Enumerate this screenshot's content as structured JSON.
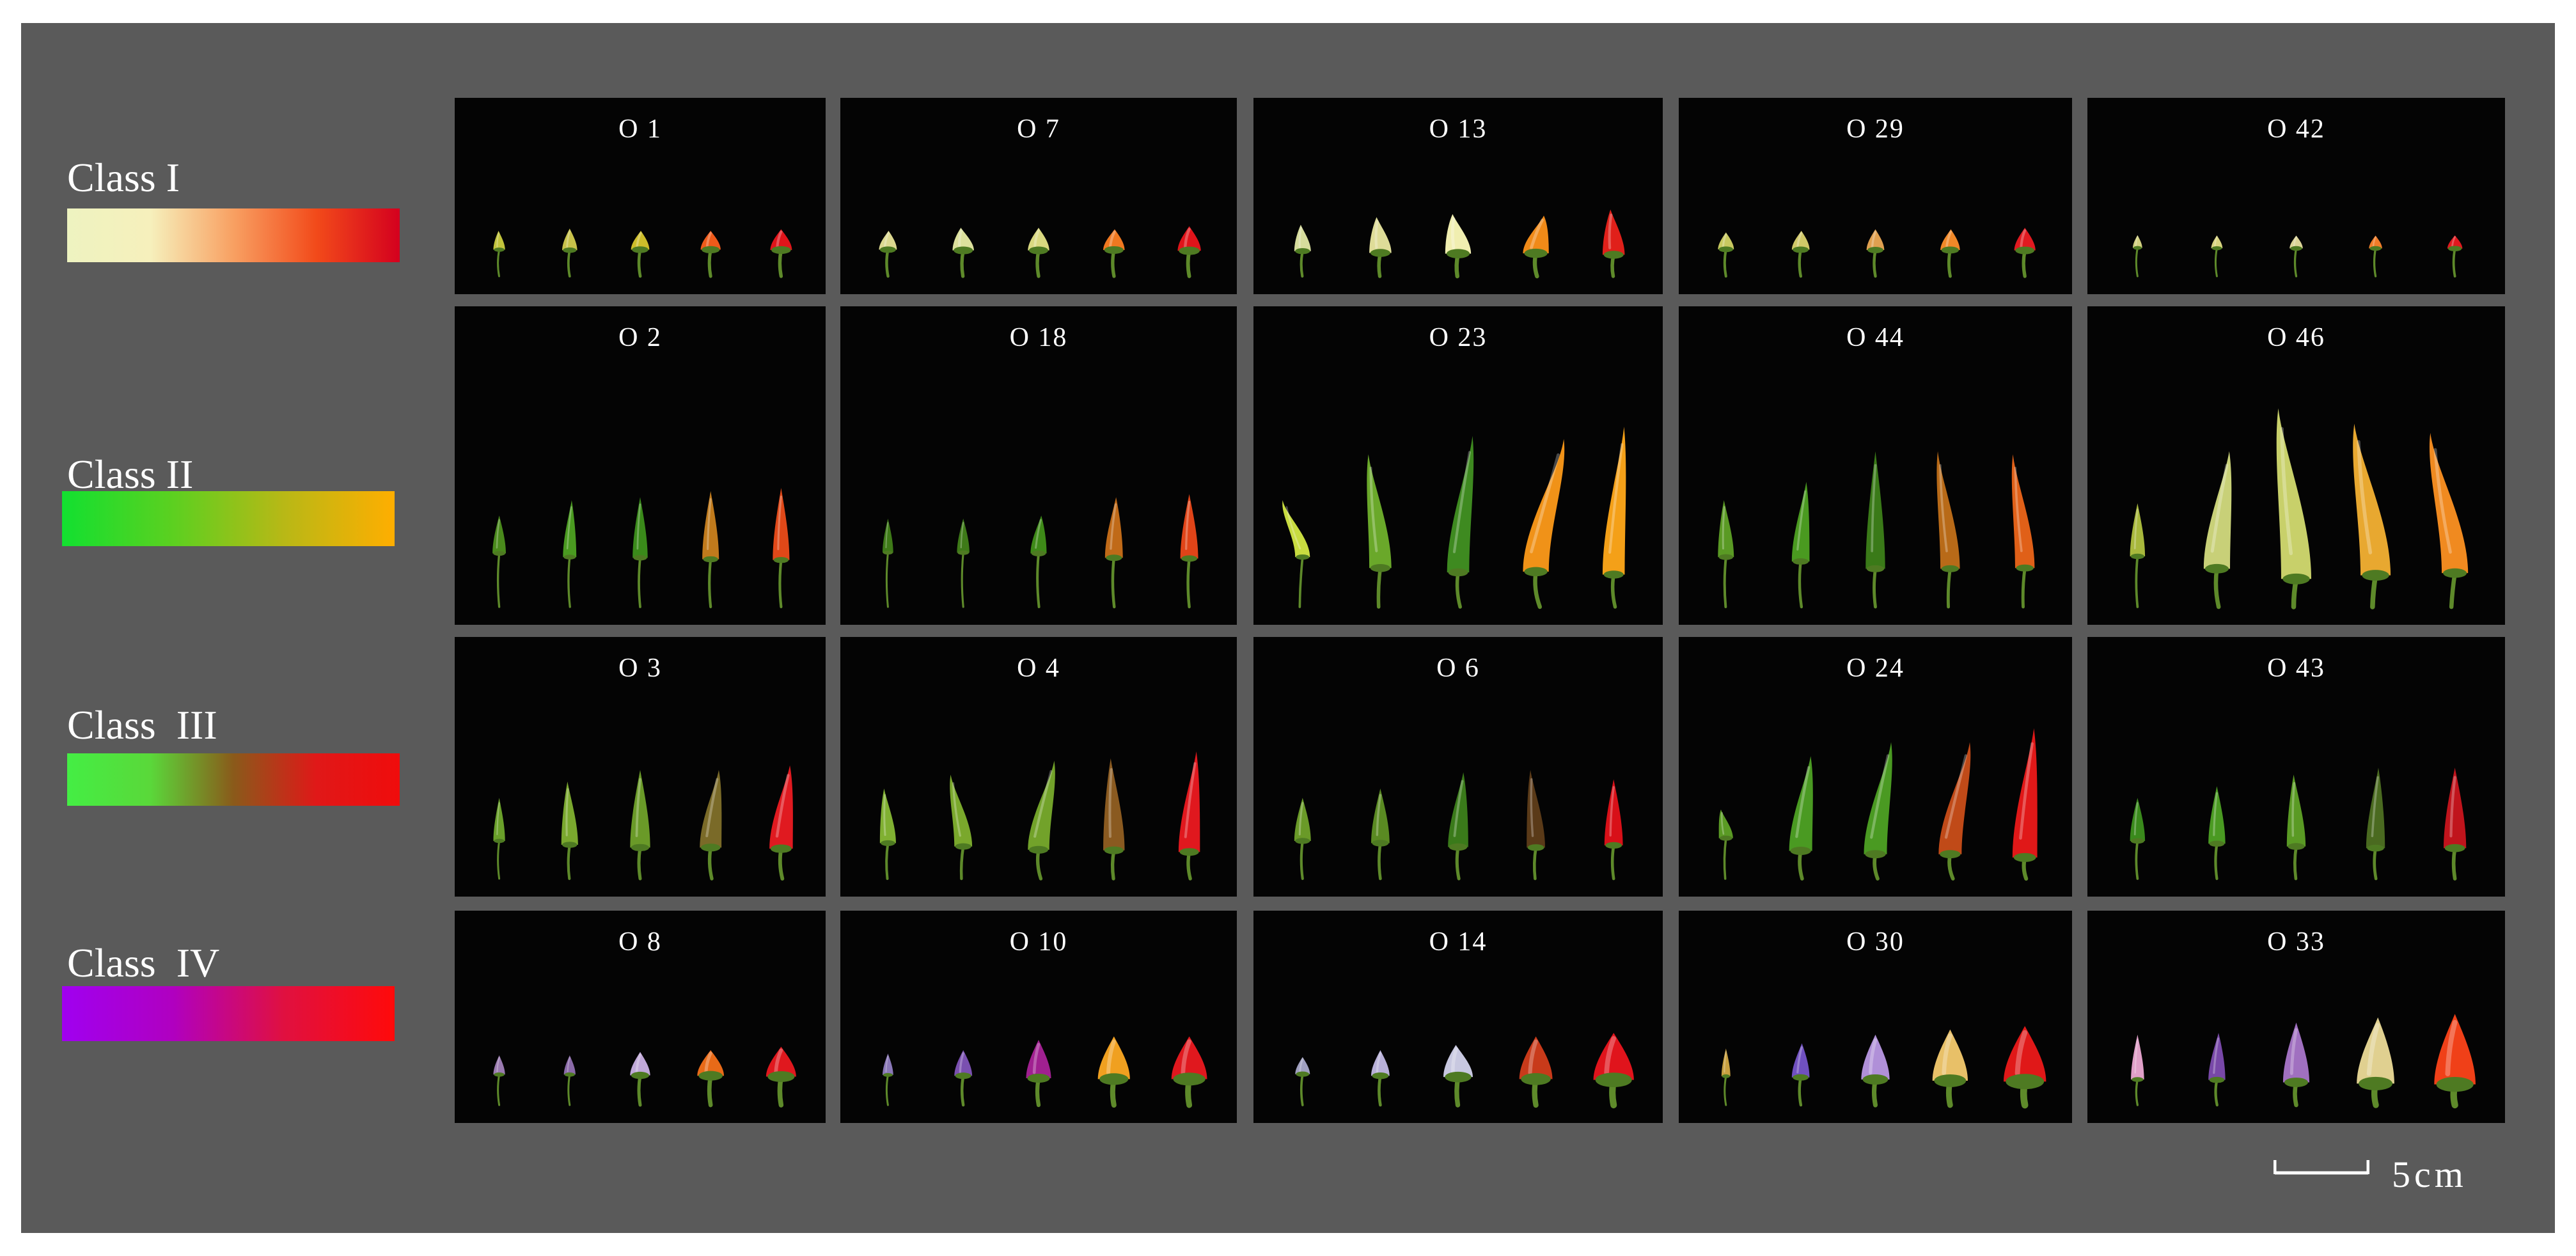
{
  "colors": {
    "frame": "#5a5a5a",
    "tile_bg": "#040404",
    "text": "#ffffff"
  },
  "classes": [
    {
      "label": "Class I",
      "gradient": [
        "#eef3c0",
        "#f6f0bc",
        "#f8a062",
        "#f24a1a",
        "#d4001e"
      ]
    },
    {
      "label": "Class II",
      "gradient": [
        "#12e030",
        "#5cd020",
        "#b8b816",
        "#ffae00"
      ]
    },
    {
      "label": "Class  III",
      "gradient": [
        "#44ee44",
        "#5ad83a",
        "#8a5a1a",
        "#e01818",
        "#f00c0c"
      ]
    },
    {
      "label": "Class  IV",
      "gradient": [
        "#a000f0",
        "#b000c0",
        "#e01040",
        "#ff0a0a"
      ]
    }
  ],
  "tiles": [
    [
      {
        "label": "O 1",
        "peppers": [
          {
            "color": "#c2c43c",
            "len": 0.2,
            "w": 0.035,
            "curve": -0.1
          },
          {
            "color": "#c8c24a",
            "len": 0.23,
            "w": 0.045,
            "curve": 0.0
          },
          {
            "color": "#cdbd2a",
            "len": 0.2,
            "w": 0.055,
            "curve": 0.1
          },
          {
            "color": "#ee5a1a",
            "len": 0.2,
            "w": 0.06,
            "curve": 0.0
          },
          {
            "color": "#e0141a",
            "len": 0.22,
            "w": 0.065,
            "curve": 0.0
          }
        ]
      },
      {
        "label": "O 7",
        "peppers": [
          {
            "color": "#dcd890",
            "len": 0.2,
            "w": 0.05,
            "curve": 0.1
          },
          {
            "color": "#dce09c",
            "len": 0.24,
            "w": 0.06,
            "curve": -0.3
          },
          {
            "color": "#d9d880",
            "len": 0.24,
            "w": 0.06,
            "curve": 0.0
          },
          {
            "color": "#f07820",
            "len": 0.22,
            "w": 0.06,
            "curve": 0.1
          },
          {
            "color": "#e0141a",
            "len": 0.26,
            "w": 0.065,
            "curve": 0.0
          }
        ]
      },
      {
        "label": "O 13",
        "peppers": [
          {
            "color": "#d6dc9c",
            "len": 0.28,
            "w": 0.045,
            "curve": -0.2
          },
          {
            "color": "#dedc98",
            "len": 0.38,
            "w": 0.06,
            "curve": -0.3
          },
          {
            "color": "#f0eeb0",
            "len": 0.42,
            "w": 0.07,
            "curve": -0.4
          },
          {
            "color": "#f08a18",
            "len": 0.4,
            "w": 0.07,
            "curve": 0.6
          },
          {
            "color": "#e0201a",
            "len": 0.48,
            "w": 0.06,
            "curve": -0.2
          }
        ]
      },
      {
        "label": "O 29",
        "peppers": [
          {
            "color": "#c8c860",
            "len": 0.18,
            "w": 0.045,
            "curve": 0.0
          },
          {
            "color": "#d0c868",
            "len": 0.2,
            "w": 0.05,
            "curve": 0.1
          },
          {
            "color": "#e0a050",
            "len": 0.22,
            "w": 0.05,
            "curve": 0.0
          },
          {
            "color": "#f08828",
            "len": 0.22,
            "w": 0.055,
            "curve": 0.1
          },
          {
            "color": "#e01a20",
            "len": 0.24,
            "w": 0.06,
            "curve": 0.0
          }
        ]
      },
      {
        "label": "O 42",
        "peppers": [
          {
            "color": "#d2d080",
            "len": 0.1,
            "w": 0.025,
            "curve": 0.0
          },
          {
            "color": "#d8d480",
            "len": 0.12,
            "w": 0.03,
            "curve": 0.0
          },
          {
            "color": "#dcd498",
            "len": 0.13,
            "w": 0.035,
            "curve": 0.0
          },
          {
            "color": "#f07c28",
            "len": 0.13,
            "w": 0.035,
            "curve": 0.0
          },
          {
            "color": "#e0181e",
            "len": 0.14,
            "w": 0.04,
            "curve": 0.0
          }
        ]
      }
    ],
    [
      {
        "label": "O 2",
        "peppers": [
          {
            "color": "#4a8a1c",
            "len": 0.2,
            "w": 0.04,
            "curve": 0.0
          },
          {
            "color": "#4a9a20",
            "len": 0.3,
            "w": 0.04,
            "curve": 0.1
          },
          {
            "color": "#3a8a1a",
            "len": 0.32,
            "w": 0.045,
            "curve": 0.0
          },
          {
            "color": "#c07a1c",
            "len": 0.36,
            "w": 0.05,
            "curve": 0.0
          },
          {
            "color": "#e04818",
            "len": 0.38,
            "w": 0.05,
            "curve": 0.0
          }
        ]
      },
      {
        "label": "O 18",
        "peppers": [
          {
            "color": "#3e7a18",
            "len": 0.18,
            "w": 0.03,
            "curve": 0.0
          },
          {
            "color": "#3e7a18",
            "len": 0.18,
            "w": 0.035,
            "curve": 0.0
          },
          {
            "color": "#3e8a18",
            "len": 0.2,
            "w": 0.045,
            "curve": 0.2
          },
          {
            "color": "#c06a18",
            "len": 0.32,
            "w": 0.05,
            "curve": 0.1
          },
          {
            "color": "#e04418",
            "len": 0.34,
            "w": 0.05,
            "curve": 0.0
          }
        ]
      },
      {
        "label": "O 23",
        "peppers": [
          {
            "color": "#c8dc40",
            "len": 0.3,
            "w": 0.04,
            "curve": -1.0
          },
          {
            "color": "#6aa82a",
            "len": 0.6,
            "w": 0.06,
            "curve": -0.3
          },
          {
            "color": "#3e8a20",
            "len": 0.72,
            "w": 0.06,
            "curve": 0.3
          },
          {
            "color": "#f09218",
            "len": 0.7,
            "w": 0.07,
            "curve": 0.6
          },
          {
            "color": "#f4a018",
            "len": 0.78,
            "w": 0.06,
            "curve": 0.2
          }
        ]
      },
      {
        "label": "O 44",
        "peppers": [
          {
            "color": "#5a9a24",
            "len": 0.3,
            "w": 0.045,
            "curve": -0.1
          },
          {
            "color": "#4a9a20",
            "len": 0.42,
            "w": 0.05,
            "curve": 0.2
          },
          {
            "color": "#3a7a18",
            "len": 0.62,
            "w": 0.055,
            "curve": 0.0
          },
          {
            "color": "#b86a18",
            "len": 0.62,
            "w": 0.055,
            "curve": -0.3
          },
          {
            "color": "#e06018",
            "len": 0.6,
            "w": 0.055,
            "curve": -0.3
          }
        ]
      },
      {
        "label": "O 46",
        "peppers": [
          {
            "color": "#a8b83c",
            "len": 0.28,
            "w": 0.04,
            "curve": 0.0
          },
          {
            "color": "#c8d078",
            "len": 0.62,
            "w": 0.07,
            "curve": 0.3
          },
          {
            "color": "#c8d06a",
            "len": 0.9,
            "w": 0.08,
            "curve": -0.3
          },
          {
            "color": "#e8a830",
            "len": 0.8,
            "w": 0.08,
            "curve": -0.4
          },
          {
            "color": "#f08a20",
            "len": 0.74,
            "w": 0.07,
            "curve": -0.5
          }
        ]
      }
    ],
    [
      {
        "label": "O 3",
        "peppers": [
          {
            "color": "#6aa02a",
            "len": 0.3,
            "w": 0.035,
            "curve": 0.0
          },
          {
            "color": "#7aa82e",
            "len": 0.44,
            "w": 0.05,
            "curve": -0.1
          },
          {
            "color": "#6a9a28",
            "len": 0.54,
            "w": 0.06,
            "curve": 0.0
          },
          {
            "color": "#7a6a28",
            "len": 0.54,
            "w": 0.065,
            "curve": 0.3
          },
          {
            "color": "#e01a20",
            "len": 0.58,
            "w": 0.07,
            "curve": 0.3
          }
        ]
      },
      {
        "label": "O 4",
        "peppers": [
          {
            "color": "#80b032",
            "len": 0.38,
            "w": 0.045,
            "curve": -0.2
          },
          {
            "color": "#7aa82c",
            "len": 0.5,
            "w": 0.05,
            "curve": -0.5
          },
          {
            "color": "#72a22a",
            "len": 0.62,
            "w": 0.06,
            "curve": 0.5
          },
          {
            "color": "#8a5a20",
            "len": 0.64,
            "w": 0.06,
            "curve": -0.1
          },
          {
            "color": "#e0181e",
            "len": 0.7,
            "w": 0.06,
            "curve": 0.2
          }
        ]
      },
      {
        "label": "O 6",
        "peppers": [
          {
            "color": "#6a9a28",
            "len": 0.3,
            "w": 0.045,
            "curve": 0.0
          },
          {
            "color": "#5a8a22",
            "len": 0.38,
            "w": 0.05,
            "curve": 0.0
          },
          {
            "color": "#3a7a1a",
            "len": 0.52,
            "w": 0.055,
            "curve": 0.2
          },
          {
            "color": "#5a3a18",
            "len": 0.54,
            "w": 0.05,
            "curve": -0.2
          },
          {
            "color": "#d81018",
            "len": 0.46,
            "w": 0.05,
            "curve": 0.0
          }
        ]
      },
      {
        "label": "O 24",
        "peppers": [
          {
            "color": "#5a9a24",
            "len": 0.2,
            "w": 0.04,
            "curve": -0.5
          },
          {
            "color": "#4a9a22",
            "len": 0.66,
            "w": 0.065,
            "curve": 0.3
          },
          {
            "color": "#4a9a22",
            "len": 0.78,
            "w": 0.065,
            "curve": 0.4
          },
          {
            "color": "#c04a18",
            "len": 0.78,
            "w": 0.065,
            "curve": 0.5
          },
          {
            "color": "#e01818",
            "len": 0.9,
            "w": 0.07,
            "curve": 0.2
          }
        ]
      },
      {
        "label": "O 43",
        "peppers": [
          {
            "color": "#3a8a1c",
            "len": 0.3,
            "w": 0.04,
            "curve": 0.0
          },
          {
            "color": "#4a9a22",
            "len": 0.4,
            "w": 0.045,
            "curve": 0.0
          },
          {
            "color": "#5a9a24",
            "len": 0.5,
            "w": 0.05,
            "curve": -0.1
          },
          {
            "color": "#4a6a20",
            "len": 0.56,
            "w": 0.05,
            "curve": 0.1
          },
          {
            "color": "#c0141c",
            "len": 0.56,
            "w": 0.06,
            "curve": 0.0
          }
        ]
      }
    ],
    [
      {
        "label": "O 8",
        "peppers": [
          {
            "color": "#9a7ab0",
            "len": 0.18,
            "w": 0.035,
            "curve": 0.0
          },
          {
            "color": "#8a6aa8",
            "len": 0.18,
            "w": 0.035,
            "curve": 0.0
          },
          {
            "color": "#c0a8d8",
            "len": 0.22,
            "w": 0.06,
            "curve": 0.0
          },
          {
            "color": "#e86a18",
            "len": 0.24,
            "w": 0.08,
            "curve": 0.0
          },
          {
            "color": "#e0181e",
            "len": 0.28,
            "w": 0.09,
            "curve": 0.0
          }
        ]
      },
      {
        "label": "O 10",
        "peppers": [
          {
            "color": "#8a78b8",
            "len": 0.2,
            "w": 0.03,
            "curve": 0.0
          },
          {
            "color": "#7a50b0",
            "len": 0.24,
            "w": 0.05,
            "curve": 0.0
          },
          {
            "color": "#a02090",
            "len": 0.36,
            "w": 0.07,
            "curve": 0.0
          },
          {
            "color": "#f0a020",
            "len": 0.4,
            "w": 0.09,
            "curve": 0.0
          },
          {
            "color": "#e0181e",
            "len": 0.4,
            "w": 0.1,
            "curve": 0.0
          }
        ]
      },
      {
        "label": "O 14",
        "peppers": [
          {
            "color": "#a0a0c0",
            "len": 0.16,
            "w": 0.04,
            "curve": 0.0
          },
          {
            "color": "#b8b0d8",
            "len": 0.24,
            "w": 0.05,
            "curve": 0.0
          },
          {
            "color": "#c8c8e0",
            "len": 0.3,
            "w": 0.08,
            "curve": -0.2
          },
          {
            "color": "#c83a1a",
            "len": 0.4,
            "w": 0.09,
            "curve": 0.0
          },
          {
            "color": "#e0141c",
            "len": 0.44,
            "w": 0.11,
            "curve": 0.0
          }
        ]
      },
      {
        "label": "O 30",
        "peppers": [
          {
            "color": "#c8a040",
            "len": 0.26,
            "w": 0.025,
            "curve": 0.0
          },
          {
            "color": "#7050c0",
            "len": 0.32,
            "w": 0.05,
            "curve": 0.1
          },
          {
            "color": "#b090d8",
            "len": 0.42,
            "w": 0.08,
            "curve": 0.0
          },
          {
            "color": "#e8c068",
            "len": 0.48,
            "w": 0.1,
            "curve": 0.0
          },
          {
            "color": "#e01818",
            "len": 0.52,
            "w": 0.12,
            "curve": 0.0
          }
        ]
      },
      {
        "label": "O 33",
        "peppers": [
          {
            "color": "#e0a0c8",
            "len": 0.42,
            "w": 0.035,
            "curve": 0.0
          },
          {
            "color": "#7848a8",
            "len": 0.44,
            "w": 0.045,
            "curve": 0.1
          },
          {
            "color": "#a070c0",
            "len": 0.56,
            "w": 0.07,
            "curve": 0.0
          },
          {
            "color": "#e0d090",
            "len": 0.62,
            "w": 0.1,
            "curve": 0.1
          },
          {
            "color": "#f04018",
            "len": 0.66,
            "w": 0.11,
            "curve": 0.0
          }
        ]
      }
    ]
  ],
  "scale": {
    "label": "5cm",
    "length_cm": 5
  }
}
